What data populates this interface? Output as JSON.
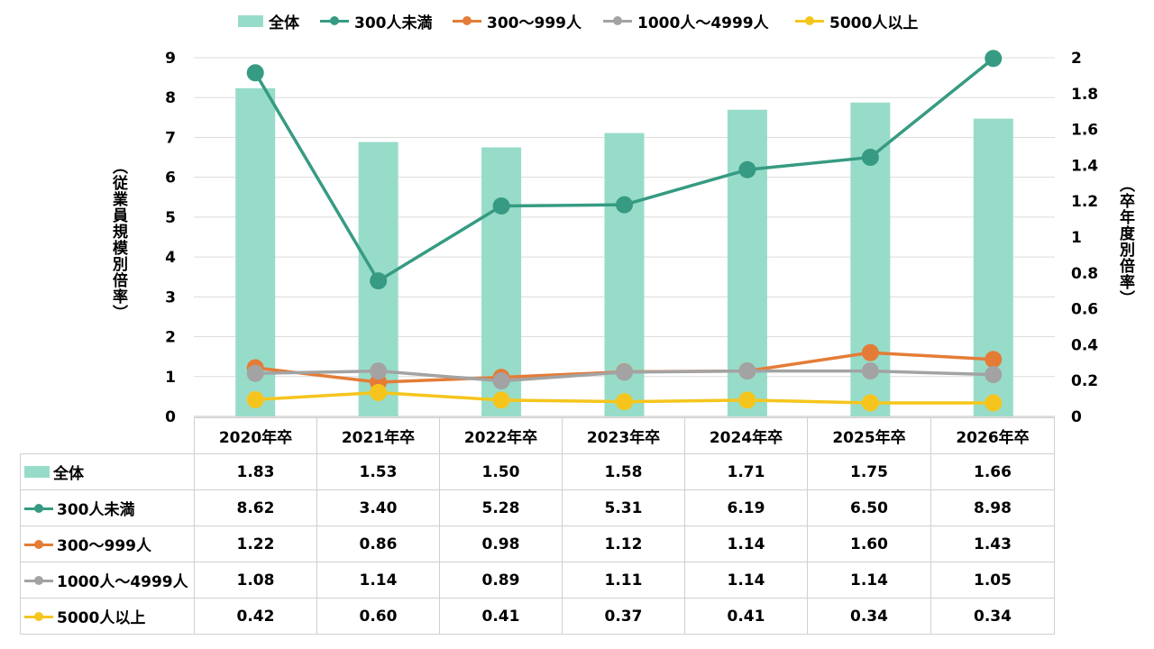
{
  "legend": [
    {
      "label": "全体",
      "kind": "bar",
      "color": "#97dcc9"
    },
    {
      "label": "300人未満",
      "kind": "line",
      "color": "#369b82"
    },
    {
      "label": "300～999人",
      "kind": "line",
      "color": "#e47c37"
    },
    {
      "label": "1000人～4999人",
      "kind": "line",
      "color": "#a3a3a3"
    },
    {
      "label": "5000人以上",
      "kind": "line",
      "color": "#f5c51d"
    }
  ],
  "axes": {
    "left_title": "（従業員規模別倍率）",
    "right_title": "（卒年度別倍率）",
    "left_ticks": [
      "0",
      "1",
      "2",
      "3",
      "4",
      "5",
      "6",
      "7",
      "8",
      "9"
    ],
    "right_ticks": [
      "0",
      "0.2",
      "0.4",
      "0.6",
      "0.8",
      "1",
      "1.2",
      "1.4",
      "1.6",
      "1.8",
      "2"
    ]
  },
  "chart_data": {
    "type": "bar",
    "categories": [
      "2020年卒",
      "2021年卒",
      "2022年卒",
      "2023年卒",
      "2024年卒",
      "2025年卒",
      "2026年卒"
    ],
    "left_axis": {
      "title": "（従業員規模別倍率）",
      "ylim": [
        0,
        9
      ]
    },
    "right_axis": {
      "title": "（卒年度別倍率）",
      "ylim": [
        0,
        2
      ]
    },
    "grid": true,
    "legend_position": "top",
    "series": [
      {
        "name": "全体",
        "type": "bar",
        "axis": "right",
        "color": "#97dcc9",
        "values": [
          1.83,
          1.53,
          1.5,
          1.58,
          1.71,
          1.75,
          1.66
        ]
      },
      {
        "name": "300人未満",
        "type": "line",
        "axis": "left",
        "color": "#369b82",
        "values": [
          8.62,
          3.4,
          5.28,
          5.31,
          6.19,
          6.5,
          8.98
        ]
      },
      {
        "name": "300～999人",
        "type": "line",
        "axis": "left",
        "color": "#e47c37",
        "values": [
          1.22,
          0.86,
          0.98,
          1.12,
          1.14,
          1.6,
          1.43
        ]
      },
      {
        "name": "1000人～4999人",
        "type": "line",
        "axis": "left",
        "color": "#a3a3a3",
        "values": [
          1.08,
          1.14,
          0.89,
          1.11,
          1.14,
          1.14,
          1.05
        ]
      },
      {
        "name": "5000人以上",
        "type": "line",
        "axis": "left",
        "color": "#f5c51d",
        "values": [
          0.42,
          0.6,
          0.41,
          0.37,
          0.41,
          0.34,
          0.34
        ]
      }
    ]
  },
  "table": {
    "headers": [
      "2020年卒",
      "2021年卒",
      "2022年卒",
      "2023年卒",
      "2024年卒",
      "2025年卒",
      "2026年卒"
    ],
    "rows": [
      {
        "label": "全体",
        "kind": "bar",
        "color": "#97dcc9",
        "cells": [
          "1.83",
          "1.53",
          "1.50",
          "1.58",
          "1.71",
          "1.75",
          "1.66"
        ]
      },
      {
        "label": "300人未満",
        "kind": "line",
        "color": "#369b82",
        "cells": [
          "8.62",
          "3.40",
          "5.28",
          "5.31",
          "6.19",
          "6.50",
          "8.98"
        ]
      },
      {
        "label": "300～999人",
        "kind": "line",
        "color": "#e47c37",
        "cells": [
          "1.22",
          "0.86",
          "0.98",
          "1.12",
          "1.14",
          "1.60",
          "1.43"
        ]
      },
      {
        "label": "1000人～4999人",
        "kind": "line",
        "color": "#a3a3a3",
        "cells": [
          "1.08",
          "1.14",
          "0.89",
          "1.11",
          "1.14",
          "1.14",
          "1.05"
        ]
      },
      {
        "label": "5000人以上",
        "kind": "line",
        "color": "#f5c51d",
        "cells": [
          "0.42",
          "0.60",
          "0.41",
          "0.37",
          "0.41",
          "0.34",
          "0.34"
        ]
      }
    ]
  }
}
